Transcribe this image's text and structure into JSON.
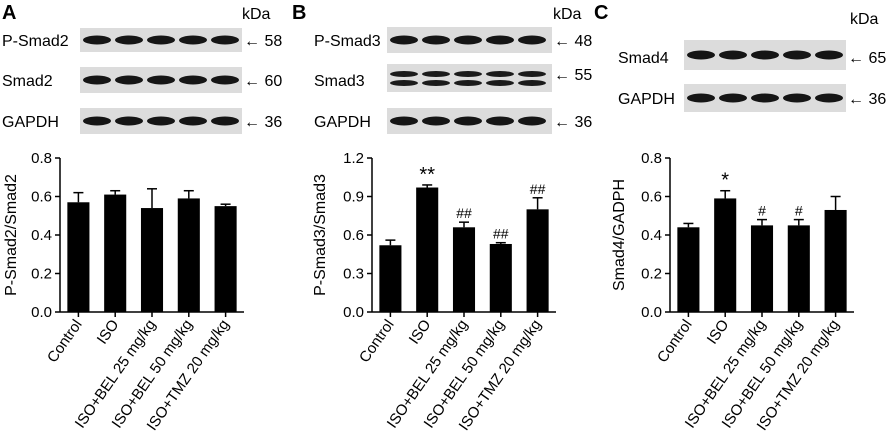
{
  "panels": [
    {
      "letter": "A",
      "kda_label": "kDa",
      "blots": [
        {
          "name": "P-Smad2",
          "kda": "58"
        },
        {
          "name": "Smad2",
          "kda": "60"
        },
        {
          "name": "GAPDH",
          "kda": "36"
        }
      ]
    },
    {
      "letter": "B",
      "kda_label": "kDa",
      "blots": [
        {
          "name": "P-Smad3",
          "kda": "48"
        },
        {
          "name": "Smad3",
          "kda": "55"
        },
        {
          "name": "GAPDH",
          "kda": "36"
        }
      ]
    },
    {
      "letter": "C",
      "kda_label": "kDa",
      "blots": [
        {
          "name": "Smad4",
          "kda": "65"
        },
        {
          "name": "GAPDH",
          "kda": "36"
        }
      ]
    }
  ],
  "chart_data": [
    {
      "type": "bar",
      "panel": "A",
      "ylabel": "P-Smad2/Smad2",
      "ylim": [
        0,
        0.8
      ],
      "yticks": [
        "0.0",
        "0.2",
        "0.4",
        "0.6",
        "0.8"
      ],
      "categories": [
        "Control",
        "ISO",
        "ISO+BEL 25 mg/kg",
        "ISO+BEL 50 mg/kg",
        "ISO+TMZ 20 mg/kg"
      ],
      "values": [
        0.57,
        0.61,
        0.54,
        0.59,
        0.55
      ],
      "errors": [
        0.05,
        0.02,
        0.1,
        0.04,
        0.01
      ],
      "significance": [
        "",
        "",
        "",
        "",
        ""
      ],
      "bar_color": "#000000"
    },
    {
      "type": "bar",
      "panel": "B",
      "ylabel": "P-Smad3/Smad3",
      "ylim": [
        0,
        1.2
      ],
      "yticks": [
        "0.0",
        "0.3",
        "0.6",
        "0.9",
        "1.2"
      ],
      "categories": [
        "Control",
        "ISO",
        "ISO+BEL 25 mg/kg",
        "ISO+BEL 50 mg/kg",
        "ISO+TMZ 20 mg/kg"
      ],
      "values": [
        0.52,
        0.97,
        0.66,
        0.53,
        0.8
      ],
      "errors": [
        0.04,
        0.02,
        0.04,
        0.01,
        0.09
      ],
      "significance": [
        "",
        "**",
        "##",
        "##",
        "##"
      ],
      "bar_color": "#000000"
    },
    {
      "type": "bar",
      "panel": "C",
      "ylabel": "Smad4/GADPH",
      "ylim": [
        0,
        0.8
      ],
      "yticks": [
        "0.0",
        "0.2",
        "0.4",
        "0.6",
        "0.8"
      ],
      "categories": [
        "Control",
        "ISO",
        "ISO+BEL 25 mg/kg",
        "ISO+BEL 50 mg/kg",
        "ISO+TMZ 20 mg/kg"
      ],
      "values": [
        0.44,
        0.59,
        0.45,
        0.45,
        0.53
      ],
      "errors": [
        0.02,
        0.04,
        0.03,
        0.03,
        0.07
      ],
      "significance": [
        "",
        "*",
        "#",
        "#",
        ""
      ],
      "bar_color": "#000000"
    }
  ]
}
